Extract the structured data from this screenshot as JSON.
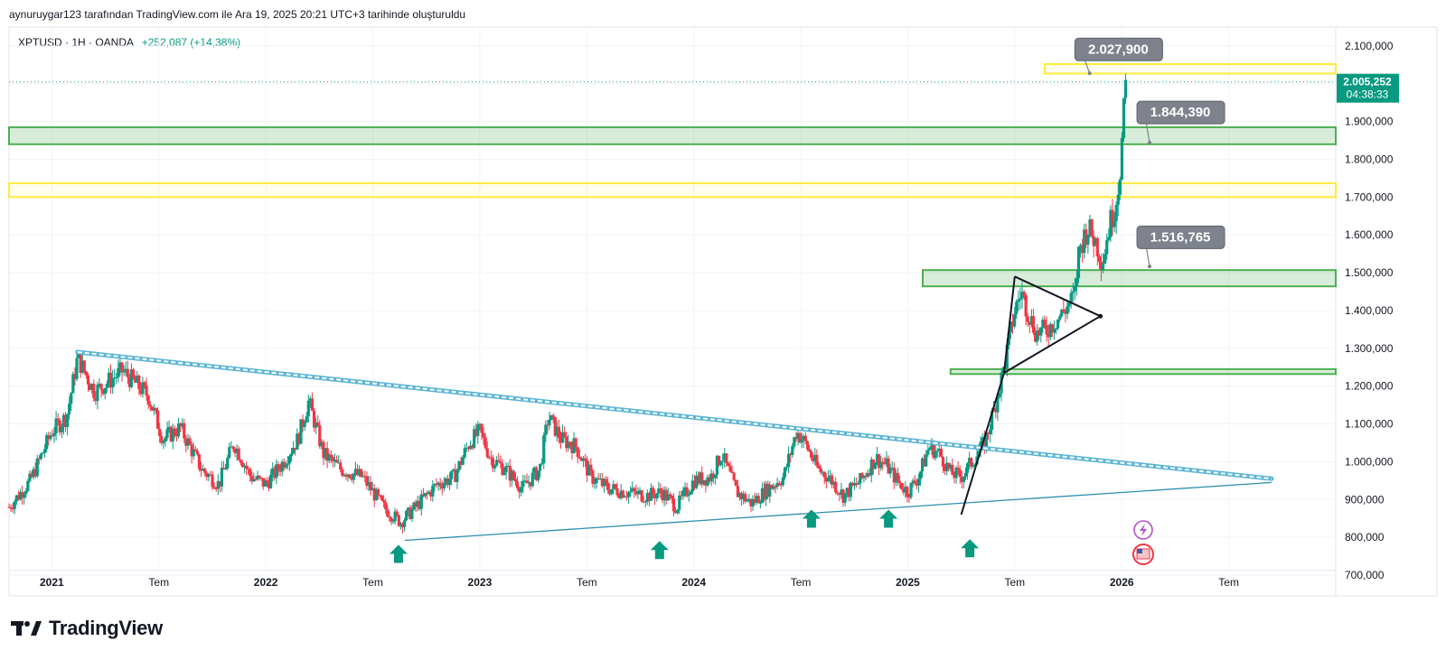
{
  "header": {
    "credit": "aynuruygar123 tarafından TradingView.com ile Ara 19, 2025 20:21 UTC+3 tarihinde oluşturuldu",
    "symbol_line": "XPTUSD · 1H · OANDA",
    "change": "+252,087 (+14,38%)"
  },
  "footer": {
    "brand": "TradingView"
  },
  "colors": {
    "up": "#089981",
    "down": "#f23645",
    "zone_green": "#4caf50",
    "zone_yellow": "#ffeb3b",
    "channel": "#5ab4d6",
    "callout": "#7d828c"
  },
  "icons": [
    "tradingview-logo-icon",
    "up-arrow-marker-icon",
    "lightning-event-icon",
    "us-flag-event-icon"
  ],
  "chart_data": {
    "type": "candlestick",
    "symbol": "XPTUSD",
    "interval": "1H",
    "source": "OANDA",
    "last_price": "2.005,252",
    "countdown": "04:38:33",
    "y_ticks": [
      {
        "v": 2100,
        "label": "2.100,000"
      },
      {
        "v": 2000,
        "label": "2.000,000"
      },
      {
        "v": 1900,
        "label": "1.900,000"
      },
      {
        "v": 1800,
        "label": "1.800,000"
      },
      {
        "v": 1700,
        "label": "1.700,000"
      },
      {
        "v": 1600,
        "label": "1.600,000"
      },
      {
        "v": 1500,
        "label": "1.500,000"
      },
      {
        "v": 1400,
        "label": "1.400,000"
      },
      {
        "v": 1300,
        "label": "1.300,000"
      },
      {
        "v": 1200,
        "label": "1.200,000"
      },
      {
        "v": 1100,
        "label": "1.100,000"
      },
      {
        "v": 1000,
        "label": "1.000,000"
      },
      {
        "v": 900,
        "label": "900,000"
      },
      {
        "v": 800,
        "label": "800,000"
      },
      {
        "v": 700,
        "label": "700,000"
      }
    ],
    "x_ticks": [
      {
        "t": 2021.0,
        "label": "2021",
        "bold": true
      },
      {
        "t": 2021.5,
        "label": "Tem",
        "bold": false
      },
      {
        "t": 2022.0,
        "label": "2022",
        "bold": true
      },
      {
        "t": 2022.5,
        "label": "Tem",
        "bold": false
      },
      {
        "t": 2023.0,
        "label": "2023",
        "bold": true
      },
      {
        "t": 2023.5,
        "label": "Tem",
        "bold": false
      },
      {
        "t": 2024.0,
        "label": "2024",
        "bold": true
      },
      {
        "t": 2024.5,
        "label": "Tem",
        "bold": false
      },
      {
        "t": 2025.0,
        "label": "2025",
        "bold": true
      },
      {
        "t": 2025.5,
        "label": "Tem",
        "bold": false
      },
      {
        "t": 2026.0,
        "label": "2026",
        "bold": true
      },
      {
        "t": 2026.5,
        "label": "Tem",
        "bold": false
      }
    ],
    "ylim": [
      645,
      2150
    ],
    "xlim": [
      2020.8,
      2027.0
    ],
    "price_path": [
      [
        2020.8,
        880
      ],
      [
        2020.9,
        950
      ],
      [
        2021.0,
        1080
      ],
      [
        2021.07,
        1120
      ],
      [
        2021.12,
        1275
      ],
      [
        2021.2,
        1185
      ],
      [
        2021.33,
        1240
      ],
      [
        2021.45,
        1175
      ],
      [
        2021.52,
        1060
      ],
      [
        2021.6,
        1090
      ],
      [
        2021.7,
        980
      ],
      [
        2021.78,
        940
      ],
      [
        2021.85,
        1050
      ],
      [
        2021.93,
        960
      ],
      [
        2022.0,
        940
      ],
      [
        2022.07,
        990
      ],
      [
        2022.15,
        1060
      ],
      [
        2022.2,
        1160
      ],
      [
        2022.27,
        1020
      ],
      [
        2022.35,
        980
      ],
      [
        2022.45,
        960
      ],
      [
        2022.55,
        880
      ],
      [
        2022.63,
        840
      ],
      [
        2022.7,
        880
      ],
      [
        2022.8,
        940
      ],
      [
        2022.88,
        960
      ],
      [
        2022.95,
        1050
      ],
      [
        2023.0,
        1080
      ],
      [
        2023.05,
        1010
      ],
      [
        2023.12,
        980
      ],
      [
        2023.2,
        930
      ],
      [
        2023.28,
        980
      ],
      [
        2023.32,
        1120
      ],
      [
        2023.38,
        1060
      ],
      [
        2023.45,
        1040
      ],
      [
        2023.52,
        960
      ],
      [
        2023.6,
        930
      ],
      [
        2023.68,
        920
      ],
      [
        2023.78,
        910
      ],
      [
        2023.85,
        920
      ],
      [
        2023.92,
        880
      ],
      [
        2024.0,
        950
      ],
      [
        2024.08,
        960
      ],
      [
        2024.13,
        1020
      ],
      [
        2024.2,
        920
      ],
      [
        2024.27,
        890
      ],
      [
        2024.35,
        930
      ],
      [
        2024.42,
        960
      ],
      [
        2024.48,
        1080
      ],
      [
        2024.52,
        1050
      ],
      [
        2024.58,
        980
      ],
      [
        2024.63,
        960
      ],
      [
        2024.7,
        910
      ],
      [
        2024.78,
        950
      ],
      [
        2024.85,
        1010
      ],
      [
        2024.9,
        990
      ],
      [
        2024.95,
        950
      ],
      [
        2025.0,
        920
      ],
      [
        2025.05,
        960
      ],
      [
        2025.1,
        1040
      ],
      [
        2025.15,
        1020
      ],
      [
        2025.2,
        970
      ],
      [
        2025.25,
        960
      ],
      [
        2025.3,
        1000
      ],
      [
        2025.36,
        1050
      ],
      [
        2025.4,
        1130
      ],
      [
        2025.45,
        1250
      ],
      [
        2025.5,
        1400
      ],
      [
        2025.53,
        1450
      ],
      [
        2025.56,
        1400
      ],
      [
        2025.6,
        1340
      ],
      [
        2025.65,
        1350
      ],
      [
        2025.72,
        1390
      ],
      [
        2025.78,
        1440
      ],
      [
        2025.8,
        1560
      ],
      [
        2025.84,
        1620
      ],
      [
        2025.88,
        1580
      ],
      [
        2025.91,
        1530
      ],
      [
        2025.94,
        1620
      ],
      [
        2025.97,
        1680
      ],
      [
        2025.99,
        1760
      ],
      [
        2026.02,
        2005
      ]
    ],
    "zones": [
      {
        "name": "resistance-zone-2028",
        "color": "yellow",
        "t_from": 2025.64,
        "price_low": 2027,
        "price_high": 2052
      },
      {
        "name": "resistance-zone-1844",
        "color": "green",
        "t_from": 2020.8,
        "price_low": 1840,
        "price_high": 1885
      },
      {
        "name": "resistance-zone-1700",
        "color": "yellow",
        "t_from": 2020.8,
        "price_low": 1700,
        "price_high": 1737
      },
      {
        "name": "support-zone-1500",
        "color": "green",
        "t_from": 2025.07,
        "price_low": 1464,
        "price_high": 1507
      },
      {
        "name": "support-zone-1235",
        "color": "green",
        "t_from": 2025.2,
        "price_low": 1232,
        "price_high": 1245
      }
    ],
    "lines": [
      {
        "name": "descending-channel-upper",
        "style": "double",
        "points": [
          [
            2021.12,
            1290
          ],
          [
            2026.7,
            955
          ]
        ]
      },
      {
        "name": "ascending-support-line",
        "style": "single",
        "points": [
          [
            2022.65,
            792
          ],
          [
            2026.7,
            945
          ]
        ]
      },
      {
        "name": "triangle-upper-edge",
        "style": "black",
        "points": [
          [
            2025.5,
            1490
          ],
          [
            2025.9,
            1385
          ]
        ]
      },
      {
        "name": "triangle-lower-edge",
        "style": "black",
        "points": [
          [
            2025.45,
            1235
          ],
          [
            2025.9,
            1385
          ]
        ]
      },
      {
        "name": "breakout-trend-line",
        "style": "black",
        "points": [
          [
            2025.25,
            860
          ],
          [
            2025.45,
            1235
          ],
          [
            2025.5,
            1490
          ]
        ]
      }
    ],
    "callouts": [
      {
        "label": "2.027,900",
        "price": 2027.9,
        "t": 2025.85,
        "box_price": 2092,
        "box_t": 2025.95
      },
      {
        "label": "1.844,390",
        "price": 1844.39,
        "t": 2026.13,
        "box_price": 1925,
        "box_t": 2026.24
      },
      {
        "label": "1.516,765",
        "price": 1516.765,
        "t": 2026.13,
        "box_price": 1595,
        "box_t": 2026.24
      }
    ],
    "markers": [
      {
        "t": 2022.62,
        "price": 780
      },
      {
        "t": 2023.84,
        "price": 790
      },
      {
        "t": 2024.55,
        "price": 873
      },
      {
        "t": 2024.91,
        "price": 873
      },
      {
        "t": 2025.29,
        "price": 795
      }
    ]
  }
}
